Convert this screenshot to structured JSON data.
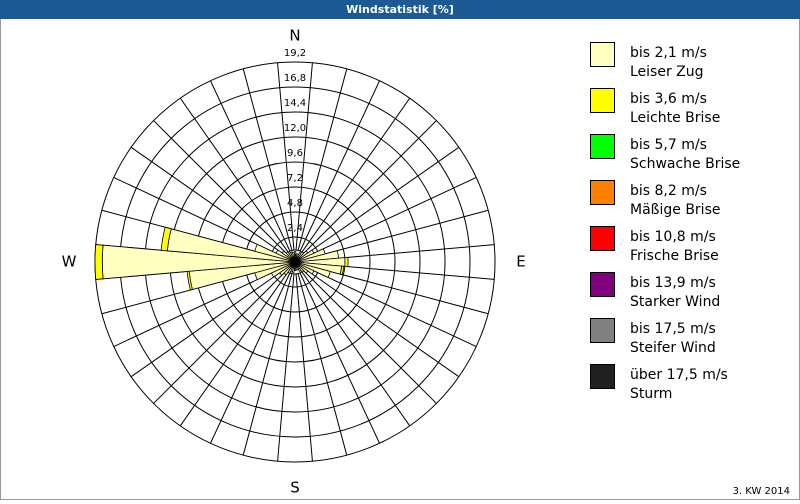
{
  "chart_data": {
    "type": "windrose",
    "title": "Windstatistik [%]",
    "note": "3. KW 2014",
    "categories": [
      "N",
      null,
      null,
      null,
      null,
      null,
      null,
      null,
      null,
      "E",
      null,
      null,
      null,
      null,
      null,
      null,
      null,
      null,
      "S",
      null,
      null,
      null,
      null,
      null,
      null,
      null,
      null,
      "W",
      null,
      null,
      null,
      null,
      null,
      null,
      null,
      null
    ],
    "ylim": [
      0,
      19.2
    ],
    "yticks": [
      {
        "value": 2.4,
        "label": "2,4"
      },
      {
        "value": 4.8,
        "label": "4,8"
      },
      {
        "value": 7.2,
        "label": "7,2"
      },
      {
        "value": 9.6,
        "label": "9,6"
      },
      {
        "value": 12.0,
        "label": "12,0"
      },
      {
        "value": 14.4,
        "label": "14,4"
      },
      {
        "value": 16.8,
        "label": "16,8"
      },
      {
        "value": 19.2,
        "label": "19,2"
      }
    ],
    "series": [
      {
        "name": "bis 2,1 m/s",
        "description": "Leiser Zug",
        "color": "#ffffc0",
        "values": [
          1.0,
          0.8,
          0.8,
          1.0,
          1.2,
          1.5,
          2.0,
          3.0,
          4.2,
          4.8,
          4.5,
          3.5,
          2.0,
          1.5,
          1.2,
          1.0,
          0.8,
          0.8,
          0.8,
          1.0,
          1.0,
          1.2,
          1.5,
          1.8,
          2.5,
          4.0,
          10.2,
          18.5,
          12.3,
          4.0,
          2.0,
          1.5,
          1.2,
          1.0,
          1.0,
          0.9
        ]
      },
      {
        "name": "bis 3,6 m/s",
        "description": "Leichte Brise",
        "color": "#ffff00",
        "values": [
          0,
          0,
          0,
          0,
          0,
          0,
          0,
          0,
          0,
          0.3,
          0.2,
          0,
          0,
          0,
          0,
          0,
          0,
          0,
          0,
          0,
          0,
          0,
          0,
          0,
          0,
          0,
          0.2,
          0.7,
          0.6,
          0,
          0,
          0,
          0,
          0,
          0,
          0
        ]
      },
      {
        "name": "bis 5,7 m/s",
        "description": "Schwache Brise",
        "color": "#00ff00",
        "values": [
          0,
          0,
          0,
          0,
          0,
          0,
          0,
          0,
          0,
          0,
          0,
          0,
          0,
          0,
          0,
          0,
          0,
          0,
          0,
          0,
          0,
          0,
          0,
          0,
          0,
          0,
          0,
          0,
          0,
          0,
          0,
          0,
          0,
          0,
          0,
          0
        ]
      },
      {
        "name": "bis 8,2 m/s",
        "description": "Mäßige Brise",
        "color": "#ff8000",
        "values": [
          0,
          0,
          0,
          0,
          0,
          0,
          0,
          0,
          0,
          0,
          0,
          0,
          0,
          0,
          0,
          0,
          0,
          0,
          0,
          0,
          0,
          0,
          0,
          0,
          0,
          0,
          0,
          0,
          0,
          0,
          0,
          0,
          0,
          0,
          0,
          0
        ]
      },
      {
        "name": "bis 10,8 m/s",
        "description": "Frische Brise",
        "color": "#ff0000",
        "values": [
          0,
          0,
          0,
          0,
          0,
          0,
          0,
          0,
          0,
          0,
          0,
          0,
          0,
          0,
          0,
          0,
          0,
          0,
          0,
          0,
          0,
          0,
          0,
          0,
          0,
          0,
          0,
          0,
          0,
          0,
          0,
          0,
          0,
          0,
          0,
          0
        ]
      },
      {
        "name": "bis 13,9 m/s",
        "description": "Starker Wind",
        "color": "#800080",
        "values": [
          0,
          0,
          0,
          0,
          0,
          0,
          0,
          0,
          0,
          0,
          0,
          0,
          0,
          0,
          0,
          0,
          0,
          0,
          0,
          0,
          0,
          0,
          0,
          0,
          0,
          0,
          0,
          0,
          0,
          0,
          0,
          0,
          0,
          0,
          0,
          0
        ]
      },
      {
        "name": "bis 17,5 m/s",
        "description": "Steifer Wind",
        "color": "#808080",
        "values": [
          0,
          0,
          0,
          0,
          0,
          0,
          0,
          0,
          0,
          0,
          0,
          0,
          0,
          0,
          0,
          0,
          0,
          0,
          0,
          0,
          0,
          0,
          0,
          0,
          0,
          0,
          0,
          0,
          0,
          0,
          0,
          0,
          0,
          0,
          0,
          0
        ]
      },
      {
        "name": "über 17,5 m/s",
        "description": "Sturm",
        "color": "#202020",
        "values": [
          0,
          0,
          0,
          0,
          0,
          0,
          0,
          0,
          0,
          0,
          0,
          0,
          0,
          0,
          0,
          0,
          0,
          0,
          0,
          0,
          0,
          0,
          0,
          0,
          0,
          0,
          0,
          0,
          0,
          0,
          0,
          0,
          0,
          0,
          0,
          0
        ]
      }
    ]
  }
}
